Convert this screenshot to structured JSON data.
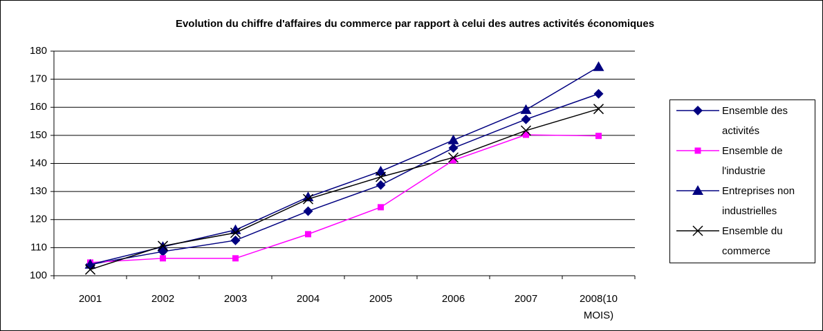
{
  "chart_data": {
    "type": "line",
    "title": "Evolution du chiffre d'affaires du commerce par rapport à celui des autres activités économiques",
    "categories": [
      "2001",
      "2002",
      "2003",
      "2004",
      "2005",
      "2006",
      "2007",
      "2008(10 MOIS)"
    ],
    "series": [
      {
        "name": "Ensemble des activités",
        "color": "#000080",
        "marker": "diamond",
        "values": [
          104,
          108.6,
          112.6,
          123,
          132.3,
          145.5,
          155.7,
          164.8
        ]
      },
      {
        "name": "Ensemble de l'industrie",
        "color": "#ff00ff",
        "marker": "square",
        "values": [
          104.7,
          106.2,
          106.2,
          114.8,
          124.4,
          141.1,
          150.2,
          149.8
        ]
      },
      {
        "name": "Entreprises non industrielles",
        "color": "#000080",
        "marker": "triangle",
        "values": [
          104,
          110.3,
          116.3,
          128,
          137.2,
          148.3,
          159.1,
          174.4
        ]
      },
      {
        "name": "Ensemble du commerce",
        "color": "#000000",
        "marker": "x",
        "values": [
          102.2,
          110.6,
          115.3,
          127.3,
          135.2,
          142.1,
          151.7,
          159.4
        ]
      }
    ],
    "ylim": [
      100,
      180
    ],
    "yticks": [
      100,
      110,
      120,
      130,
      140,
      150,
      160,
      170,
      180
    ],
    "grid": true,
    "legend": "right"
  }
}
